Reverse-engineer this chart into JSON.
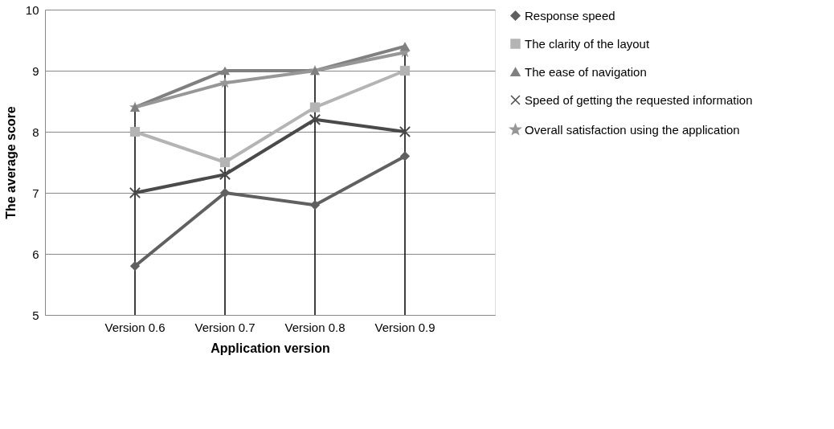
{
  "chart_data": {
    "type": "line",
    "xlabel": "Application version",
    "ylabel": "The average score",
    "categories": [
      "Version 0.6",
      "Version 0.7",
      "Version 0.8",
      "Version 0.9"
    ],
    "series": [
      {
        "name": "Response speed",
        "color": "#606060",
        "marker": "diamond",
        "values": [
          5.8,
          7.0,
          6.8,
          7.6
        ]
      },
      {
        "name": "The clarity of the layout",
        "color": "#b4b4b4",
        "marker": "square",
        "values": [
          8.0,
          7.5,
          8.4,
          9.0
        ]
      },
      {
        "name": "The ease of navigation",
        "color": "#808080",
        "marker": "triangle",
        "values": [
          8.4,
          9.0,
          9.0,
          9.4
        ]
      },
      {
        "name": "Speed of getting the requested information",
        "color": "#4a4a4a",
        "marker": "cross",
        "values": [
          7.0,
          7.3,
          8.2,
          8.0
        ]
      },
      {
        "name": "Overall satisfaction using the application",
        "color": "#979797",
        "marker": "star",
        "values": [
          8.4,
          8.8,
          9.0,
          9.3
        ]
      }
    ],
    "ylim": [
      5,
      10
    ],
    "yticks": [
      5,
      6,
      7,
      8,
      9,
      10
    ],
    "grid": "y",
    "legend": "right",
    "ref_lines": [
      {
        "axis": "x",
        "value": "Version 0.6",
        "color": "#000000"
      },
      {
        "axis": "x",
        "value": "Version 0.7",
        "color": "#000000"
      },
      {
        "axis": "x",
        "value": "Version 0.8",
        "color": "#000000"
      },
      {
        "axis": "x",
        "value": "Version 0.9",
        "color": "#000000"
      }
    ]
  }
}
